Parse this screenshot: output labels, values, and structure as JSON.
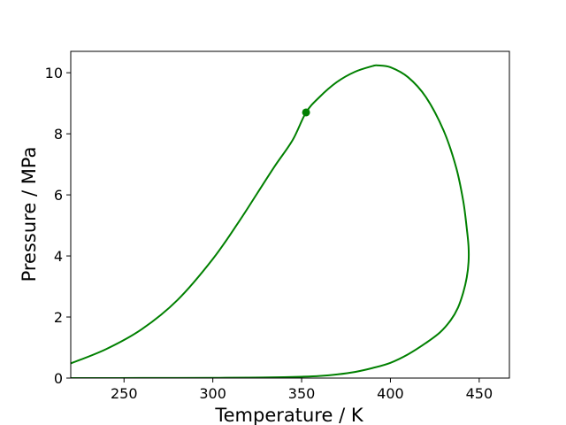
{
  "chart_data": {
    "type": "line",
    "title": "",
    "xlabel": "Temperature / K",
    "ylabel": "Pressure / MPa",
    "xlim": [
      220,
      467
    ],
    "ylim": [
      0,
      10.7
    ],
    "xticks": [
      250,
      300,
      350,
      400,
      450
    ],
    "yticks": [
      0,
      2,
      4,
      6,
      8,
      10
    ],
    "grid": false,
    "legend": "none",
    "series": [
      {
        "color": "#008000",
        "x": [
          220,
          240,
          260,
          280,
          300,
          315,
          325,
          335,
          345,
          352.5,
          360,
          370,
          380,
          390,
          393,
          400,
          410,
          420,
          430,
          437,
          441,
          443,
          444,
          444,
          443,
          441,
          438,
          434,
          428,
          420,
          410,
          400,
          390,
          380,
          370,
          360,
          350,
          340,
          320,
          300,
          280,
          260,
          240,
          220
        ],
        "y": [
          0.48,
          0.95,
          1.6,
          2.55,
          3.9,
          5.15,
          6.05,
          6.95,
          7.8,
          8.7,
          9.2,
          9.7,
          10.03,
          10.22,
          10.24,
          10.18,
          9.85,
          9.2,
          8.1,
          6.9,
          5.8,
          4.9,
          4.3,
          3.8,
          3.3,
          2.8,
          2.3,
          1.9,
          1.5,
          1.15,
          0.78,
          0.5,
          0.33,
          0.2,
          0.12,
          0.07,
          0.045,
          0.03,
          0.015,
          0.008,
          0.004,
          0.002,
          0.001,
          0.0
        ]
      }
    ],
    "markers": [
      {
        "x": 352.5,
        "y": 8.7,
        "color": "#008000"
      }
    ]
  }
}
